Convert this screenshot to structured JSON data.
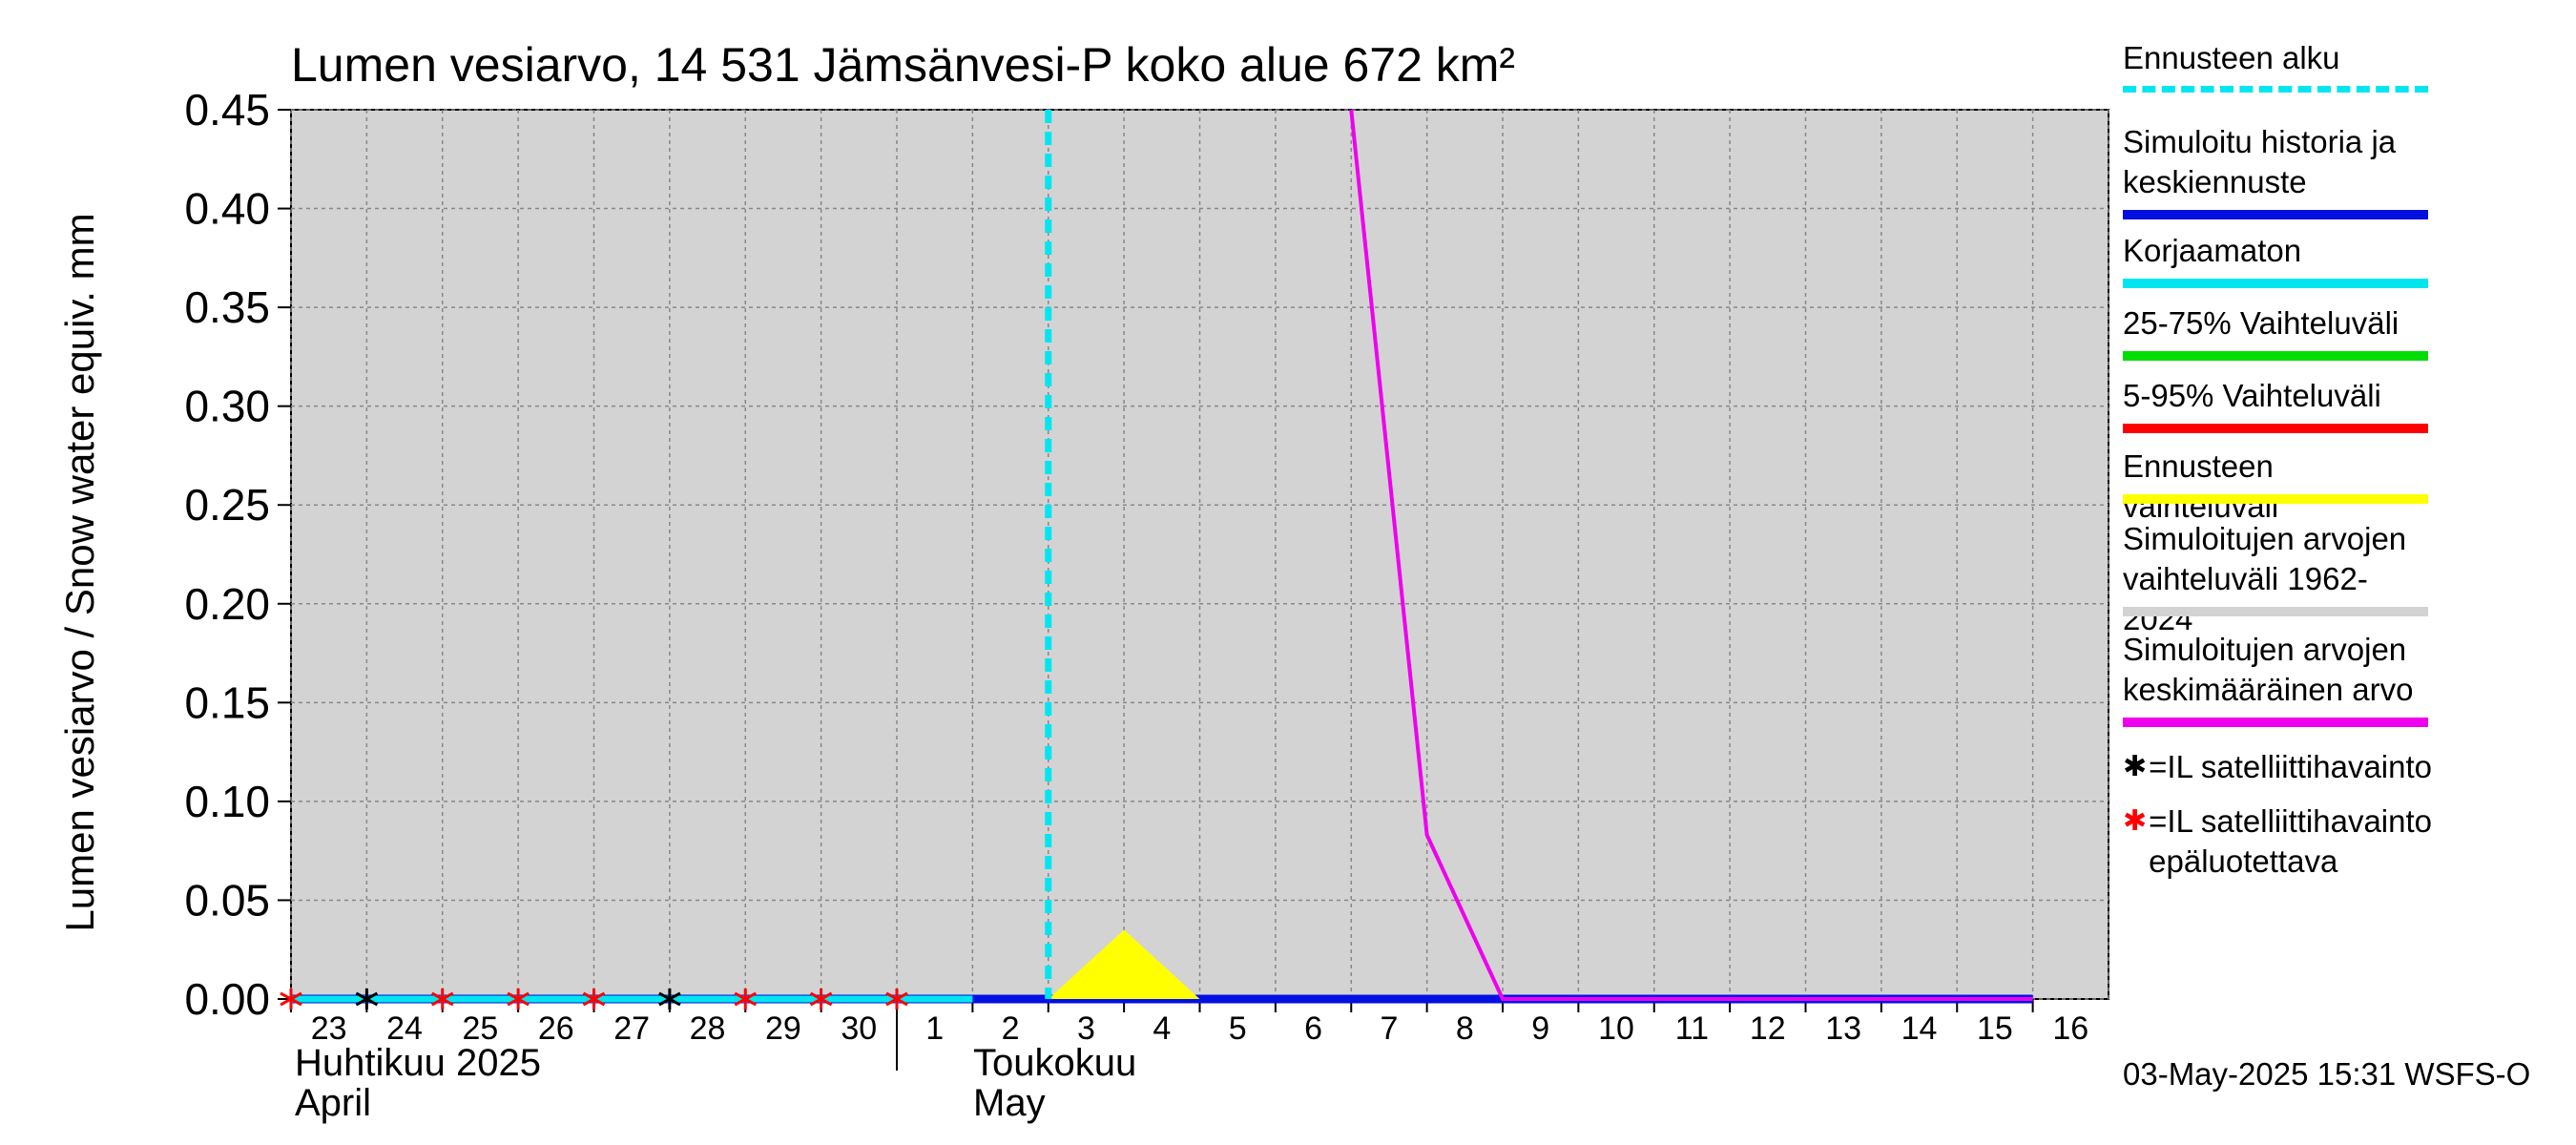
{
  "chart_data": {
    "type": "line",
    "title": "Lumen vesiarvo, 14 531 Jämsänvesi-P koko alue 672 km²",
    "ylabel": "Lumen vesiarvo / Snow water equiv.    mm",
    "ylim": [
      0,
      0.45
    ],
    "yticks": [
      "0.00",
      "0.05",
      "0.10",
      "0.15",
      "0.20",
      "0.25",
      "0.30",
      "0.35",
      "0.40",
      "0.45"
    ],
    "x_tick_labels": [
      "23",
      "24",
      "25",
      "26",
      "27",
      "28",
      "29",
      "30",
      "1",
      "2",
      "3",
      "4",
      "5",
      "6",
      "7",
      "8",
      "9",
      "10",
      "11",
      "12",
      "13",
      "14",
      "15",
      "16"
    ],
    "month_labels": [
      {
        "line1": "Huhtikuu  2025",
        "line2": "April"
      },
      {
        "line1": "Toukokuu",
        "line2": "May"
      }
    ],
    "grid": true,
    "forecast_start": "2025-05-03",
    "series": [
      {
        "name": "Simuloitu historia ja keskiennuste",
        "color": "#0010e0",
        "x": [
          "2025-04-23",
          "2025-05-16"
        ],
        "y": [
          0.0,
          0.0
        ]
      },
      {
        "name": "Korjaamaton",
        "color": "#00e6f0",
        "x": [
          "2025-04-23",
          "2025-05-02"
        ],
        "y": [
          0.0,
          0.0
        ]
      },
      {
        "name": "Ennusteen vaihteluväli",
        "color": "#ffff00",
        "kind": "area",
        "x": [
          "2025-05-03",
          "2025-05-04",
          "2025-05-05"
        ],
        "y": [
          0.0,
          0.035,
          0.0
        ]
      },
      {
        "name": "Simuloitujen arvojen keskimääräinen arvo",
        "color": "#ee00ee",
        "x": [
          "2025-05-07",
          "2025-05-08",
          "2025-05-09",
          "2025-05-16"
        ],
        "y": [
          0.45,
          0.083,
          0.0,
          0.0
        ]
      }
    ],
    "satellite_obs": [
      {
        "date": "2025-04-24",
        "value": 0.0,
        "reliable": true
      },
      {
        "date": "2025-04-28",
        "value": 0.0,
        "reliable": true
      },
      {
        "date": "2025-04-23",
        "value": 0.0,
        "reliable": false
      },
      {
        "date": "2025-04-25",
        "value": 0.0,
        "reliable": false
      },
      {
        "date": "2025-04-26",
        "value": 0.0,
        "reliable": false
      },
      {
        "date": "2025-04-27",
        "value": 0.0,
        "reliable": false
      },
      {
        "date": "2025-04-29",
        "value": 0.0,
        "reliable": false
      },
      {
        "date": "2025-04-30",
        "value": 0.0,
        "reliable": false
      },
      {
        "date": "2025-05-01",
        "value": 0.0,
        "reliable": false
      }
    ]
  },
  "legend": [
    {
      "label": "Ennusteen alku",
      "color": "#00e6f0",
      "style": "dashed"
    },
    {
      "label": "Simuloitu historia ja\nkeskiennuste",
      "color": "#0010e0",
      "style": "solid"
    },
    {
      "label": "Korjaamaton",
      "color": "#00e6f0",
      "style": "solid"
    },
    {
      "label": "25-75% Vaihteluväli",
      "color": "#00dd00",
      "style": "solid"
    },
    {
      "label": "5-95% Vaihteluväli",
      "color": "#ff0000",
      "style": "solid"
    },
    {
      "label": "Ennusteen vaihteluväli",
      "color": "#ffff00",
      "style": "solid"
    },
    {
      "label": "Simuloitujen arvojen\nvaihteluväli 1962-2024",
      "color": "#d3d3d3",
      "style": "solid"
    },
    {
      "label": "Simuloitujen arvojen\nkeskimääräinen arvo",
      "color": "#ee00ee",
      "style": "solid"
    },
    {
      "label": "=IL satelliittihavainto",
      "marker": "*",
      "color": "#000000"
    },
    {
      "label": "=IL satelliittihavainto\nepäluotettava",
      "marker": "*",
      "color": "#ff0000"
    }
  ],
  "footer": {
    "timestamp": "03-May-2025 15:31 WSFS-O"
  }
}
